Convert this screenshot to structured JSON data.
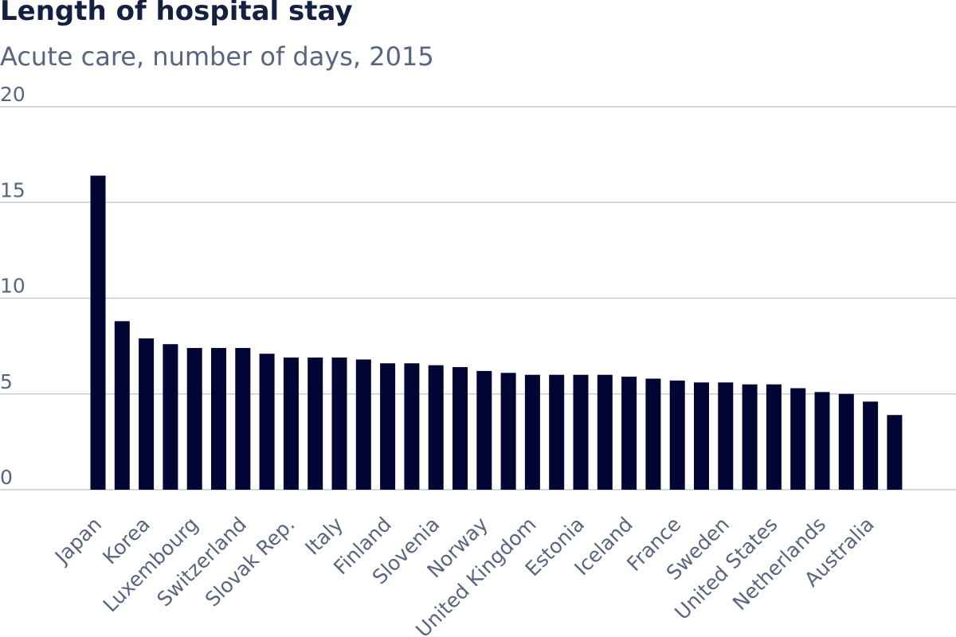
{
  "chart_data": {
    "type": "bar",
    "title": "Length of hospital stay",
    "subtitle": "Acute care, number of days, 2015",
    "xlabel": "",
    "ylabel": "",
    "ylim": [
      0,
      20
    ],
    "yticks": [
      "0",
      "5",
      "10",
      "15",
      "20"
    ],
    "grid": true,
    "bar_color": "#000533",
    "grid_color": "#c4ccd6",
    "axis_text_color": "#5a6480",
    "categories": [
      "Japan",
      "",
      "Korea",
      "",
      "Luxembourg",
      "",
      "Switzerland",
      "",
      "Slovak Rep.",
      "",
      "Italy",
      "",
      "Finland",
      "",
      "Slovenia",
      "",
      "Norway",
      "",
      "United Kingdom",
      "",
      "Estonia",
      "",
      "Iceland",
      "",
      "France",
      "",
      "Sweden",
      "",
      "United States",
      "",
      "Netherlands",
      "",
      "Australia",
      ""
    ],
    "values": [
      16.4,
      8.8,
      7.9,
      7.6,
      7.4,
      7.4,
      7.4,
      7.1,
      6.9,
      6.9,
      6.9,
      6.8,
      6.6,
      6.6,
      6.5,
      6.4,
      6.2,
      6.1,
      6.0,
      6.0,
      6.0,
      6.0,
      5.9,
      5.8,
      5.7,
      5.6,
      5.6,
      5.5,
      5.5,
      5.3,
      5.1,
      5.0,
      4.6,
      3.9
    ]
  }
}
